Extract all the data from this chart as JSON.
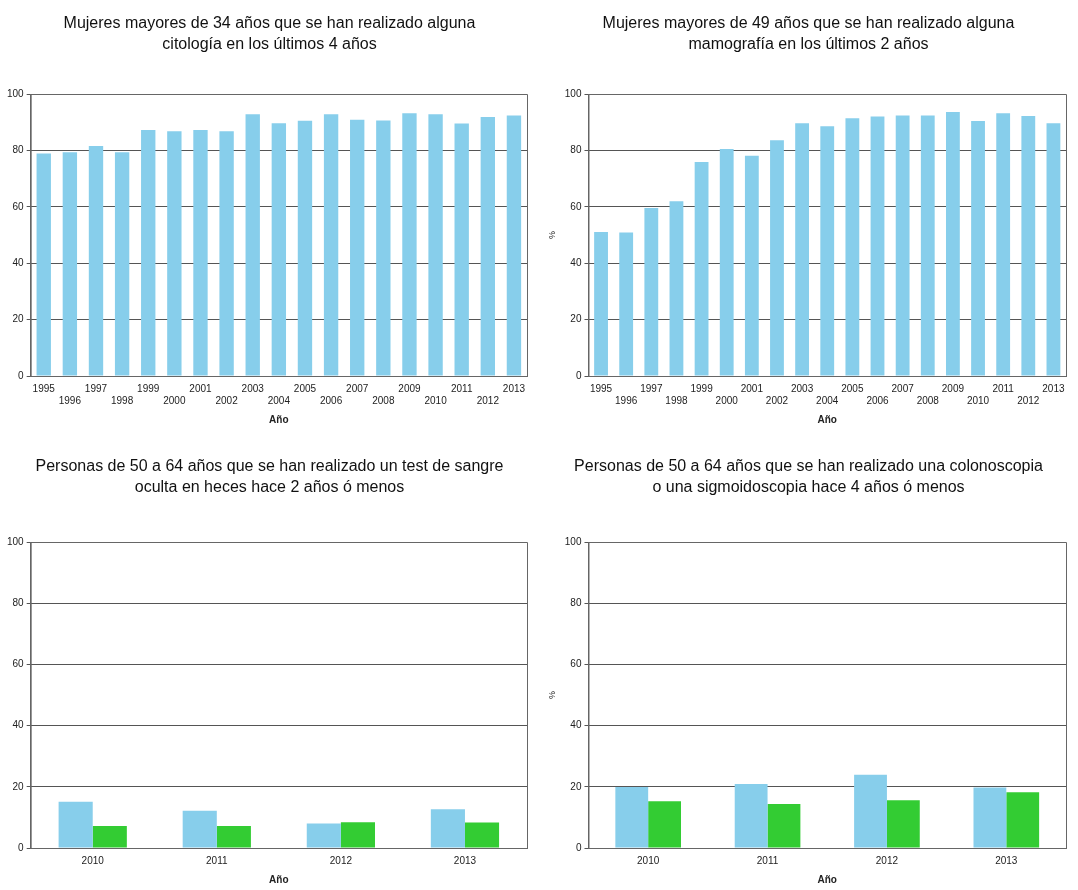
{
  "chart_data": [
    {
      "type": "bar",
      "title": "Mujeres mayores de 34 años que se han realizado alguna citología en los últimos 4 años",
      "xlabel": "Año",
      "categories": [
        "1995",
        "1996",
        "1997",
        "1998",
        "1999",
        "2000",
        "2001",
        "2002",
        "2003",
        "2004",
        "2005",
        "2006",
        "2007",
        "2008",
        "2009",
        "2010",
        "2011",
        "2012",
        "2013"
      ],
      "values": [
        78.9,
        79.3,
        81.6,
        79.3,
        87.2,
        86.8,
        87.2,
        86.8,
        92.8,
        89.6,
        90.5,
        92.8,
        90.9,
        90.6,
        93.2,
        92.8,
        89.5,
        91.8,
        92.4
      ],
      "color": "#87ceeb",
      "ylim": [
        0,
        100
      ],
      "yticks": [
        0,
        20,
        40,
        60,
        80,
        100
      ],
      "grid": "y"
    },
    {
      "type": "bar",
      "title": "Mujeres mayores de 49 años que se han realizado alguna mamografía en los últimos 2 años",
      "xlabel": "Año",
      "ylabel": "%",
      "categories": [
        "1995",
        "1996",
        "1997",
        "1998",
        "1999",
        "2000",
        "2001",
        "2002",
        "2003",
        "2004",
        "2005",
        "2006",
        "2007",
        "2008",
        "2009",
        "2010",
        "2011",
        "2012",
        "2013"
      ],
      "values": [
        51.1,
        50.9,
        59.6,
        62,
        75.9,
        80.5,
        78.1,
        83.6,
        89.6,
        88.6,
        91.4,
        92,
        92.4,
        92.4,
        93.6,
        90.4,
        93.2,
        92.2,
        89.6
      ],
      "color": "#87ceeb",
      "ylim": [
        0,
        100
      ],
      "yticks": [
        0,
        20,
        40,
        60,
        80,
        100
      ],
      "grid": "y"
    },
    {
      "type": "bar",
      "title": "Personas de 50 a 64 años que se han realizado un test de sangre oculta en heces hace 2 años ó menos",
      "xlabel": "Año",
      "categories": [
        "2010",
        "2011",
        "2012",
        "2013"
      ],
      "series": [
        {
          "color": "#87ceeb",
          "values": [
            15.1,
            12.2,
            8.0,
            12.7
          ]
        },
        {
          "color": "#33cc33",
          "values": [
            7.2,
            7.2,
            8.4,
            8.3
          ]
        }
      ],
      "ylim": [
        0,
        100
      ],
      "yticks": [
        0,
        20,
        40,
        60,
        80,
        100
      ],
      "grid": "y"
    },
    {
      "type": "bar",
      "title": "Personas de 50 a 64 años que se han realizado una colonoscopia o una sigmoidoscopia hace 4 años ó menos",
      "xlabel": "Año",
      "ylabel": "%",
      "categories": [
        "2010",
        "2011",
        "2012",
        "2013"
      ],
      "series": [
        {
          "color": "#87ceeb",
          "values": [
            19.9,
            20.9,
            23.9,
            19.8
          ]
        },
        {
          "color": "#33cc33",
          "values": [
            15.3,
            14.4,
            15.6,
            18.2
          ]
        }
      ],
      "ylim": [
        0,
        100
      ],
      "yticks": [
        0,
        20,
        40,
        60,
        80,
        100
      ],
      "grid": "y"
    }
  ]
}
